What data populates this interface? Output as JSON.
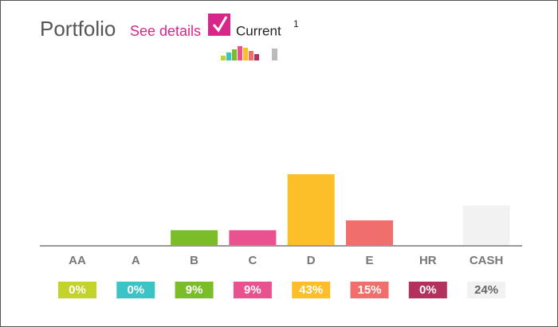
{
  "header": {
    "title": "Portfolio",
    "link": "See details",
    "checkbox_label": "Current",
    "footnote": "1",
    "checked": true
  },
  "chart_data": {
    "type": "bar",
    "categories": [
      "AA",
      "A",
      "B",
      "C",
      "D",
      "E",
      "HR",
      "CASH"
    ],
    "values": [
      0,
      0,
      9,
      9,
      43,
      15,
      0,
      24
    ],
    "value_labels": [
      "0%",
      "0%",
      "9%",
      "9%",
      "43%",
      "15%",
      "0%",
      "24%"
    ],
    "colors": [
      "#c3d32c",
      "#3bc3c6",
      "#7bbd29",
      "#e9528f",
      "#fcbf27",
      "#f06f6c",
      "#b4305d",
      "#f2f2f2"
    ]
  }
}
